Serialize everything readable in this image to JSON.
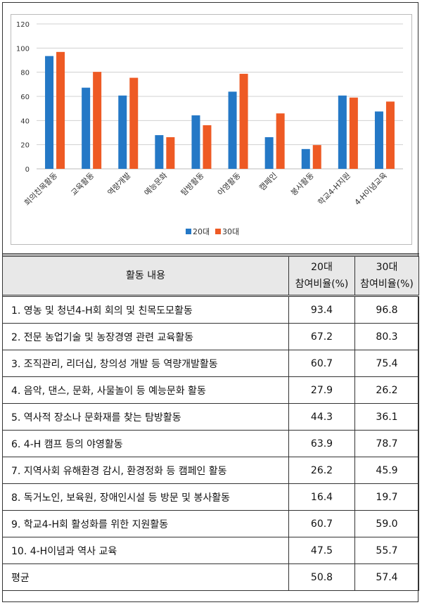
{
  "chart_data": {
    "type": "bar",
    "categories": [
      "회의친목활동",
      "교육활동",
      "역량개발",
      "예능문화",
      "탐방활동",
      "야영활동",
      "캠페인",
      "봉사활동",
      "학교4-H지원",
      "4-H이념교육"
    ],
    "series": [
      {
        "name": "20대",
        "color": "#2478C6",
        "values": [
          93.4,
          67.2,
          60.7,
          27.9,
          44.3,
          63.9,
          26.2,
          16.4,
          60.7,
          47.5
        ]
      },
      {
        "name": "30대",
        "color": "#EE5A24",
        "values": [
          96.8,
          80.3,
          75.4,
          26.2,
          36.1,
          78.7,
          45.9,
          19.7,
          59.0,
          55.7
        ]
      }
    ],
    "ylim": [
      0,
      120
    ],
    "yticks": [
      "0",
      "20",
      "40",
      "60",
      "80",
      "100",
      "120"
    ],
    "grid": true,
    "legend": "bottom",
    "title": "",
    "xlabel": "",
    "ylabel": ""
  },
  "table": {
    "header": {
      "activity": "활동 내용",
      "col20_line1": "20대",
      "col20_line2": "참여비율(%)",
      "col30_line1": "30대",
      "col30_line2": "참여비율(%)"
    },
    "rows": [
      {
        "activity": "1. 영농 및 청년4-H회 회의 및 친목도모활동",
        "v20": "93.4",
        "v30": "96.8"
      },
      {
        "activity": "2. 전문 농업기술 및 농장경영 관련 교육활동",
        "v20": "67.2",
        "v30": "80.3"
      },
      {
        "activity": "3. 조직관리, 리더십,  창의성 개발 등 역량개발활동",
        "v20": "60.7",
        "v30": "75.4"
      },
      {
        "activity": "4. 음악, 댄스, 문화, 사물놀이 등 예능문화 활동",
        "v20": "27.9",
        "v30": "26.2"
      },
      {
        "activity": "5. 역사적 장소나 문화재를 찾는 탐방활동",
        "v20": "44.3",
        "v30": "36.1"
      },
      {
        "activity": "6. 4-H 캠프 등의 야영활동",
        "v20": "63.9",
        "v30": "78.7"
      },
      {
        "activity": "7. 지역사회 유해환경 감시, 환경정화 등 캠페인 활동",
        "v20": "26.2",
        "v30": "45.9"
      },
      {
        "activity": "8. 독거노인, 보육원, 장애인시설 등 방문 및 봉사활동",
        "v20": "16.4",
        "v30": "19.7"
      },
      {
        "activity": "9. 학교4-H회 활성화를 위한 지원활동",
        "v20": "60.7",
        "v30": "59.0"
      },
      {
        "activity": "10. 4-H이념과 역사 교육",
        "v20": "47.5",
        "v30": "55.7"
      },
      {
        "activity": "평균",
        "v20": "50.8",
        "v30": "57.4"
      }
    ]
  }
}
